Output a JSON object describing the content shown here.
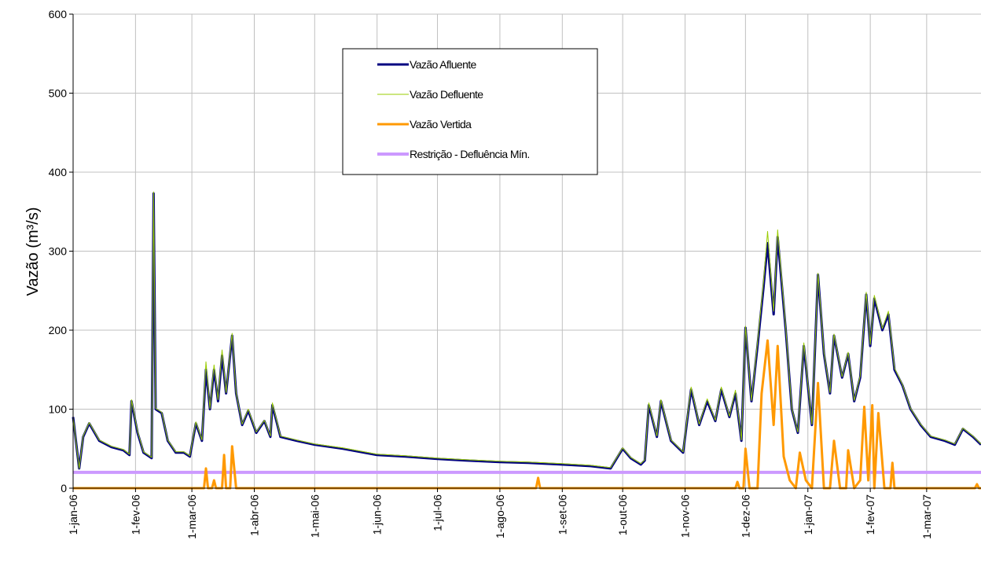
{
  "chart_data": {
    "type": "line",
    "ylabel": "Vazão (m³/s)",
    "ylim": [
      0,
      600
    ],
    "yticks": [
      0,
      100,
      200,
      300,
      400,
      500,
      600
    ],
    "xlim": [
      "2006-01-01",
      "2007-03-28"
    ],
    "xticks": [
      {
        "value": "2006-01-01",
        "label": "1-jan-06"
      },
      {
        "value": "2006-02-01",
        "label": "1-fev-06"
      },
      {
        "value": "2006-03-01",
        "label": "1-mar-06"
      },
      {
        "value": "2006-04-01",
        "label": "1-abr-06"
      },
      {
        "value": "2006-05-01",
        "label": "1-mai-06"
      },
      {
        "value": "2006-06-01",
        "label": "1-jun-06"
      },
      {
        "value": "2006-07-01",
        "label": "1-jul-06"
      },
      {
        "value": "2006-08-01",
        "label": "1-ago-06"
      },
      {
        "value": "2006-09-01",
        "label": "1-set-06"
      },
      {
        "value": "2006-10-01",
        "label": "1-out-06"
      },
      {
        "value": "2006-11-01",
        "label": "1-nov-06"
      },
      {
        "value": "2006-12-01",
        "label": "1-dez-06"
      },
      {
        "value": "2007-01-01",
        "label": "1-jan-07"
      },
      {
        "value": "2007-02-01",
        "label": "1-fev-07"
      },
      {
        "value": "2007-03-01",
        "label": "1-mar-07"
      }
    ],
    "grid": true,
    "x": [
      "2006-01-01",
      "2006-01-04",
      "2006-01-06",
      "2006-01-09",
      "2006-01-14",
      "2006-01-20",
      "2006-01-26",
      "2006-01-29",
      "2006-01-30",
      "2006-02-02",
      "2006-02-05",
      "2006-02-09",
      "2006-02-10",
      "2006-02-11",
      "2006-02-14",
      "2006-02-17",
      "2006-02-21",
      "2006-02-25",
      "2006-02-28",
      "2006-03-03",
      "2006-03-06",
      "2006-03-08",
      "2006-03-10",
      "2006-03-12",
      "2006-03-14",
      "2006-03-16",
      "2006-03-18",
      "2006-03-21",
      "2006-03-23",
      "2006-03-26",
      "2006-03-29",
      "2006-04-02",
      "2006-04-06",
      "2006-04-09",
      "2006-04-10",
      "2006-04-14",
      "2006-04-22",
      "2006-05-01",
      "2006-05-15",
      "2006-06-01",
      "2006-06-15",
      "2006-07-01",
      "2006-07-15",
      "2006-08-01",
      "2006-08-15",
      "2006-09-01",
      "2006-09-15",
      "2006-09-25",
      "2006-10-01",
      "2006-10-05",
      "2006-10-10",
      "2006-10-12",
      "2006-10-14",
      "2006-10-18",
      "2006-10-20",
      "2006-10-25",
      "2006-10-31",
      "2006-11-04",
      "2006-11-08",
      "2006-11-12",
      "2006-11-16",
      "2006-11-19",
      "2006-11-23",
      "2006-11-26",
      "2006-11-29",
      "2006-12-01",
      "2006-12-04",
      "2006-12-07",
      "2006-12-10",
      "2006-12-12",
      "2006-12-15",
      "2006-12-17",
      "2006-12-21",
      "2006-12-24",
      "2006-12-27",
      "2006-12-30",
      "2007-01-03",
      "2007-01-06",
      "2007-01-09",
      "2007-01-12",
      "2007-01-14",
      "2007-01-18",
      "2007-01-21",
      "2007-01-24",
      "2007-01-27",
      "2007-01-30",
      "2007-02-01",
      "2007-02-03",
      "2007-02-07",
      "2007-02-10",
      "2007-02-13",
      "2007-02-17",
      "2007-02-21",
      "2007-02-26",
      "2007-03-03",
      "2007-03-10",
      "2007-03-15",
      "2007-03-19",
      "2007-03-24",
      "2007-03-28"
    ],
    "series": [
      {
        "name": "Vazão Afluente",
        "color": "#000080",
        "width": 3,
        "values": [
          90,
          25,
          65,
          82,
          60,
          52,
          48,
          42,
          110,
          70,
          45,
          38,
          373,
          100,
          95,
          60,
          45,
          45,
          40,
          82,
          60,
          150,
          100,
          150,
          110,
          168,
          120,
          193,
          120,
          80,
          98,
          70,
          85,
          65,
          105,
          65,
          60,
          55,
          50,
          42,
          40,
          37,
          35,
          33,
          32,
          30,
          28,
          25,
          50,
          38,
          30,
          35,
          105,
          65,
          110,
          60,
          45,
          125,
          80,
          110,
          85,
          125,
          90,
          120,
          60,
          203,
          110,
          180,
          255,
          310,
          220,
          318,
          200,
          100,
          70,
          180,
          80,
          270,
          170,
          120,
          193,
          140,
          170,
          110,
          140,
          245,
          180,
          240,
          200,
          220,
          150,
          130,
          100,
          80,
          65,
          60,
          55,
          75,
          65,
          55
        ]
      },
      {
        "name": "Vazão Defluente",
        "color": "#99cc00",
        "width": 1,
        "values": [
          90,
          25,
          66,
          83,
          61,
          53,
          49,
          43,
          112,
          72,
          46,
          39,
          375,
          101,
          96,
          61,
          46,
          46,
          41,
          84,
          61,
          160,
          101,
          156,
          112,
          175,
          121,
          196,
          121,
          81,
          100,
          71,
          86,
          66,
          108,
          66,
          61,
          56,
          51,
          43,
          41,
          38,
          36,
          34,
          33,
          31,
          29,
          26,
          51,
          39,
          31,
          36,
          108,
          66,
          112,
          61,
          46,
          128,
          81,
          113,
          86,
          128,
          91,
          124,
          61,
          205,
          111,
          185,
          262,
          325,
          224,
          327,
          203,
          101,
          71,
          184,
          81,
          272,
          172,
          121,
          195,
          141,
          172,
          111,
          142,
          248,
          182,
          244,
          202,
          224,
          152,
          131,
          101,
          81,
          66,
          61,
          56,
          76,
          66,
          56
        ]
      },
      {
        "name": "Vazão Vertida",
        "color": "#ff9900",
        "width": 3,
        "x": [
          "2006-01-01",
          "2006-03-07",
          "2006-03-08",
          "2006-03-09",
          "2006-03-11",
          "2006-03-12",
          "2006-03-13",
          "2006-03-16",
          "2006-03-17",
          "2006-03-18",
          "2006-03-20",
          "2006-03-21",
          "2006-03-23",
          "2006-08-19",
          "2006-08-20",
          "2006-08-21",
          "2006-11-26",
          "2006-11-27",
          "2006-11-28",
          "2006-11-30",
          "2006-12-01",
          "2006-12-03",
          "2006-12-07",
          "2006-12-09",
          "2006-12-12",
          "2006-12-15",
          "2006-12-17",
          "2006-12-20",
          "2006-12-23",
          "2006-12-26",
          "2006-12-28",
          "2006-12-31",
          "2007-01-03",
          "2007-01-06",
          "2007-01-09",
          "2007-01-12",
          "2007-01-14",
          "2007-01-17",
          "2007-01-20",
          "2007-01-21",
          "2007-01-24",
          "2007-01-27",
          "2007-01-29",
          "2007-01-31",
          "2007-02-02",
          "2007-02-03",
          "2007-02-05",
          "2007-02-08",
          "2007-02-11",
          "2007-02-12",
          "2007-02-13",
          "2007-03-25",
          "2007-03-26",
          "2007-03-27",
          "2007-03-28"
        ],
        "values": [
          0,
          0,
          25,
          0,
          0,
          10,
          0,
          0,
          42,
          0,
          0,
          53,
          0,
          0,
          13,
          0,
          0,
          8,
          0,
          0,
          50,
          0,
          0,
          120,
          187,
          80,
          180,
          40,
          10,
          0,
          45,
          10,
          0,
          133,
          0,
          0,
          60,
          0,
          0,
          48,
          0,
          10,
          103,
          10,
          105,
          0,
          95,
          0,
          0,
          32,
          0,
          0,
          5,
          0,
          0
        ]
      },
      {
        "name": "Restrição - Defluência Mín.",
        "color": "#cc99ff",
        "width": 4,
        "x": [
          "2006-01-01",
          "2007-03-28"
        ],
        "values": [
          20,
          20
        ]
      }
    ]
  }
}
